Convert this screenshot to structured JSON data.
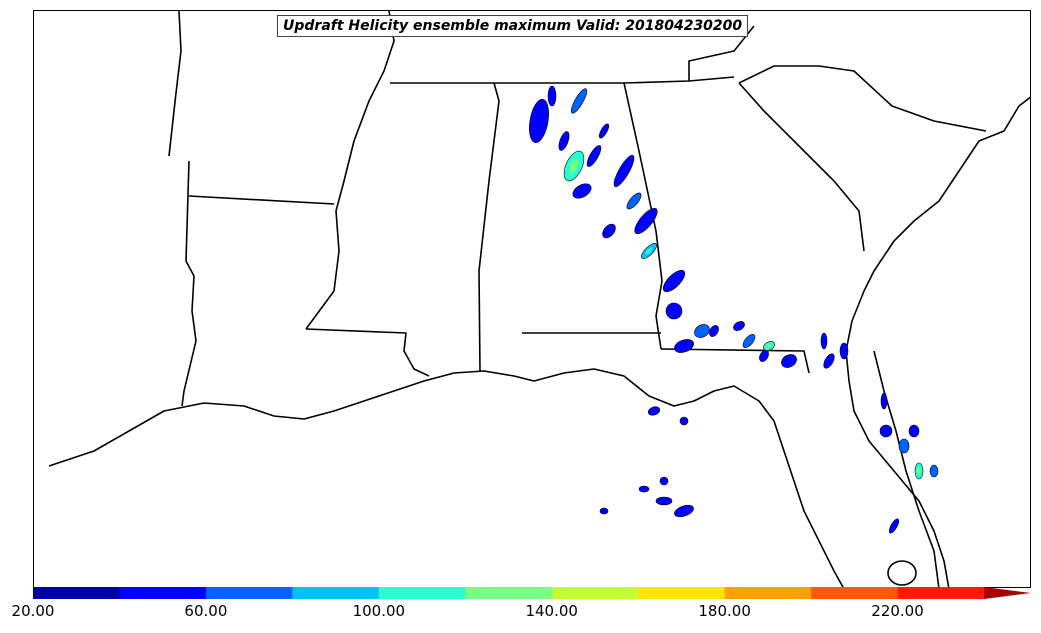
{
  "map": {
    "title": "Updraft Helicity ensemble maximum Valid: 201804230200",
    "region": "Southeastern United States",
    "colors": {
      "boundary": "#000000",
      "background": "#ffffff"
    }
  },
  "colorbar": {
    "min": 20,
    "max": 240,
    "step": 20,
    "extend": "max",
    "colors": [
      "#0000a8",
      "#0000ff",
      "#0062ff",
      "#00c4ff",
      "#27ffd0",
      "#76ff80",
      "#c4ff31",
      "#ffe600",
      "#ffa100",
      "#ff5900",
      "#ff1a00",
      "#a80000",
      "#a80000"
    ],
    "tick_labels": [
      "20.00",
      "60.00",
      "100.00",
      "140.00",
      "180.00",
      "220.00"
    ],
    "tick_values": [
      20,
      60,
      100,
      140,
      180,
      220
    ]
  },
  "cells": [
    {
      "v": 40
    },
    {
      "v": 40
    },
    {
      "v": 60
    },
    {
      "v": 40
    },
    {
      "v": 100
    },
    {
      "v": 40
    },
    {
      "v": 40
    },
    {
      "v": 40
    },
    {
      "v": 40
    },
    {
      "v": 60
    },
    {
      "v": 40
    },
    {
      "v": 40
    },
    {
      "v": 80
    },
    {
      "v": 40
    },
    {
      "v": 40
    },
    {
      "v": 60
    },
    {
      "v": 40
    },
    {
      "v": 40
    },
    {
      "v": 40
    },
    {
      "v": 60
    },
    {
      "v": 100
    },
    {
      "v": 40
    },
    {
      "v": 40
    },
    {
      "v": 40
    },
    {
      "v": 40
    },
    {
      "v": 40
    },
    {
      "v": 40
    },
    {
      "v": 40
    },
    {
      "v": 40
    },
    {
      "v": 60
    },
    {
      "v": 100
    },
    {
      "v": 60
    },
    {
      "v": 40
    },
    {
      "v": 40
    },
    {
      "v": 40
    },
    {
      "v": 40
    },
    {
      "v": 40
    },
    {
      "v": 40
    },
    {
      "v": 40
    },
    {
      "v": 40
    }
  ]
}
